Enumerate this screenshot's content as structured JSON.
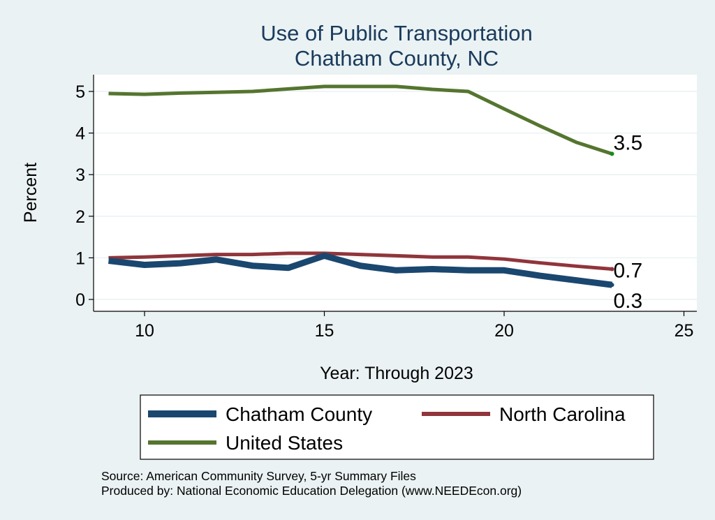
{
  "chart_data": {
    "type": "line",
    "title": "Use of Public Transportation",
    "subtitle": "Chatham County, NC",
    "xlabel": "Year: Through 2023",
    "ylabel": "Percent",
    "xlim": [
      9,
      25
    ],
    "ylim": [
      0,
      5.2
    ],
    "xticks": [
      10,
      15,
      20,
      25
    ],
    "yticks": [
      0,
      1,
      2,
      3,
      4,
      5
    ],
    "grid": true,
    "legend_position": "bottom",
    "x": [
      9,
      10,
      11,
      12,
      13,
      14,
      15,
      16,
      17,
      18,
      19,
      20,
      21,
      22,
      23
    ],
    "series": [
      {
        "name": "Chatham County",
        "color": "#1a476f",
        "end_label": "0.3",
        "values": [
          0.93,
          0.83,
          0.87,
          0.96,
          0.81,
          0.76,
          1.05,
          0.81,
          0.7,
          0.73,
          0.7,
          0.7,
          0.57,
          0.46,
          0.35
        ]
      },
      {
        "name": "North Carolina",
        "color": "#90353b",
        "end_label": "0.7",
        "values": [
          1.0,
          1.02,
          1.05,
          1.08,
          1.08,
          1.11,
          1.11,
          1.08,
          1.05,
          1.02,
          1.02,
          0.97,
          0.88,
          0.8,
          0.73
        ]
      },
      {
        "name": "United States",
        "color": "#55752f",
        "end_label": "3.5",
        "values": [
          4.95,
          4.93,
          4.96,
          4.98,
          5.0,
          5.06,
          5.12,
          5.12,
          5.12,
          5.05,
          5.0,
          4.58,
          4.17,
          3.78,
          3.5
        ]
      }
    ],
    "notes": [
      "Source: American Community Survey, 5-yr Summary Files",
      "Produced by: National Economic Education Delegation (www.NEEDEcon.org)"
    ]
  }
}
